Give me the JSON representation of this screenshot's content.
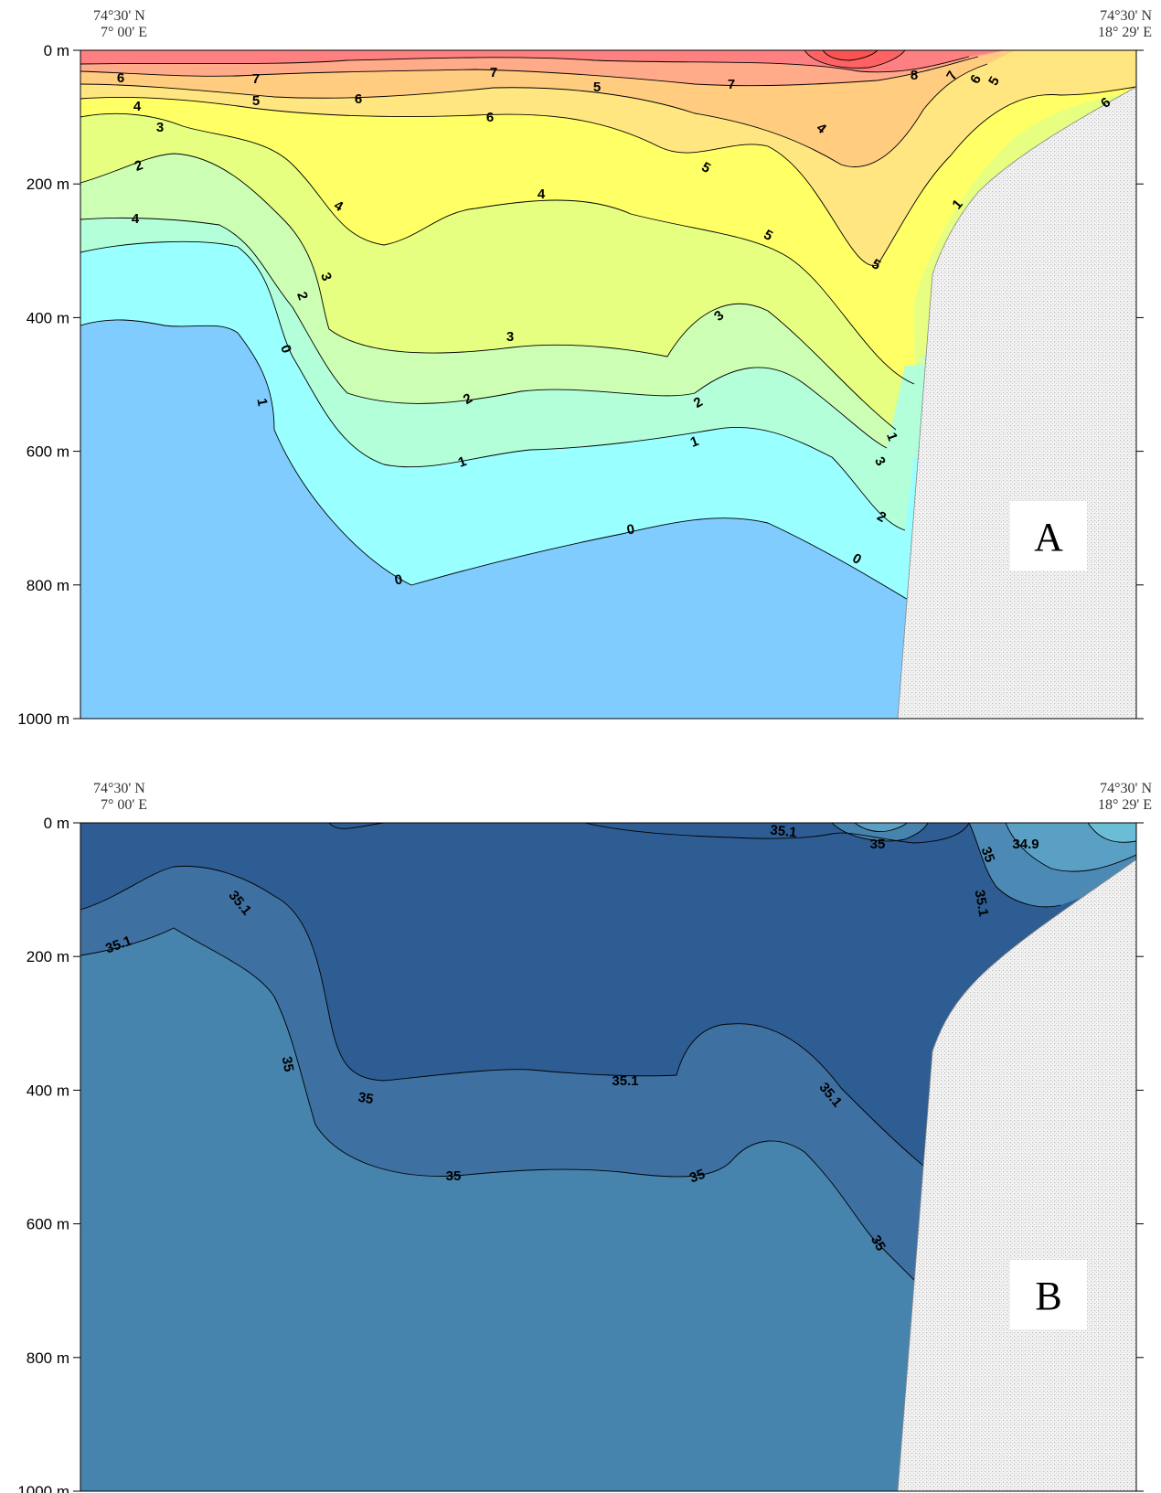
{
  "chart_data": [
    {
      "type": "contour",
      "panel_label": "A",
      "corner_left": [
        "74°30' N",
        "7° 00' E"
      ],
      "corner_right": [
        "74°30' N",
        "18° 29' E"
      ],
      "y_ticks": [
        "0 m",
        "200 m",
        "400 m",
        "600 m",
        "800 m",
        "1000 m"
      ],
      "ylim": [
        0,
        1000
      ],
      "y_reversed": true,
      "contour_levels": [
        0,
        1,
        2,
        3,
        4,
        5,
        6,
        7,
        8
      ],
      "fill_colors": {
        "below_0": "#80ccff",
        "0_1": "#99ffff",
        "1_2": "#b3ffd9",
        "2_3": "#ccffb3",
        "3_4": "#e6ff80",
        "4_5": "#ffff66",
        "5_6": "#ffe680",
        "6_7": "#ffcc80",
        "7_8": "#ffaa88",
        "8_plus": "#ff8080",
        "max": "#ee3333"
      },
      "contour_labels": [
        "6",
        "7",
        "7",
        "6",
        "7",
        "8",
        "7",
        "6",
        "5",
        "4",
        "5",
        "6",
        "5",
        "4",
        "3",
        "5",
        "6",
        "2",
        "5",
        "4",
        "1",
        "4",
        "4",
        "5",
        "3",
        "2",
        "3",
        "3",
        "1",
        "0",
        "2",
        "2",
        "3",
        "1",
        "1",
        "2",
        "1",
        "0",
        "0",
        "0"
      ]
    },
    {
      "type": "contour",
      "panel_label": "B",
      "corner_left": [
        "74°30' N",
        "7° 00' E"
      ],
      "corner_right": [
        "74°30' N",
        "18° 29' E"
      ],
      "y_ticks": [
        "0 m",
        "200 m",
        "400 m",
        "600 m",
        "800 m",
        "1000 m"
      ],
      "ylim": [
        0,
        1000
      ],
      "y_reversed": true,
      "contour_levels": [
        34.9,
        35,
        35.1
      ],
      "fill_colors": {
        "below_34.9": "#6bbdd6",
        "34.9_35": "#5aa0c4",
        "35_35.1": "#4684ae",
        "above_35.1": "#2e5d93"
      },
      "contour_labels": [
        "35.1",
        "35",
        "34.9",
        "35",
        "35.1",
        "35.1",
        "35",
        "35",
        "35.1",
        "35.1",
        "35.1",
        "35",
        "35",
        "35"
      ]
    }
  ],
  "colors": {
    "land": "#f0f0f0",
    "land_dots": "#bfbfbf",
    "contour_line": "#000000"
  }
}
